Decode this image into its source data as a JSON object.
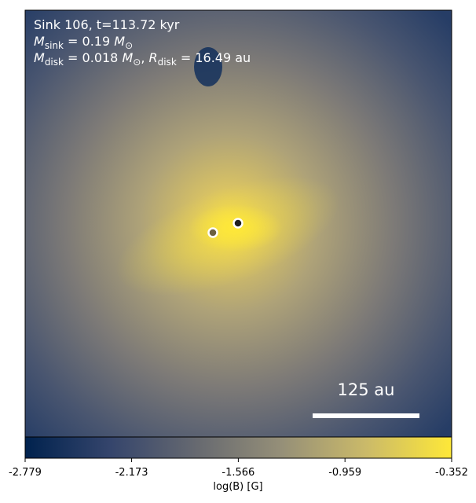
{
  "chart_data": {
    "type": "image",
    "annotations": [
      [
        {
          "text": "Sink 106, t=113.72 kyr"
        }
      ],
      [
        {
          "text": "M",
          "style": "italic"
        },
        {
          "text": "sink",
          "style": "sub"
        },
        {
          "text": " = 0.19 "
        },
        {
          "text": "M",
          "style": "italic"
        },
        {
          "text": "⊙",
          "style": "sub"
        }
      ],
      [
        {
          "text": "M",
          "style": "italic"
        },
        {
          "text": "disk",
          "style": "sub"
        },
        {
          "text": " = 0.018 "
        },
        {
          "text": "M",
          "style": "italic"
        },
        {
          "text": "⊙",
          "style": "sub"
        },
        {
          "text": ", "
        },
        {
          "text": "R",
          "style": "italic"
        },
        {
          "text": "disk",
          "style": "sub"
        },
        {
          "text": " = 16.49 au"
        }
      ]
    ],
    "scale_bar": "125 au",
    "colorbar": {
      "label": "log(B) [G]",
      "clim": [
        -2.779,
        -0.352
      ],
      "ticks": [
        -2.779,
        -2.173,
        -1.566,
        -0.959,
        -0.352
      ],
      "colormap": [
        "#00224e",
        "#35456c",
        "#666970",
        "#958f78",
        "#cbba69",
        "#fee838"
      ]
    }
  }
}
